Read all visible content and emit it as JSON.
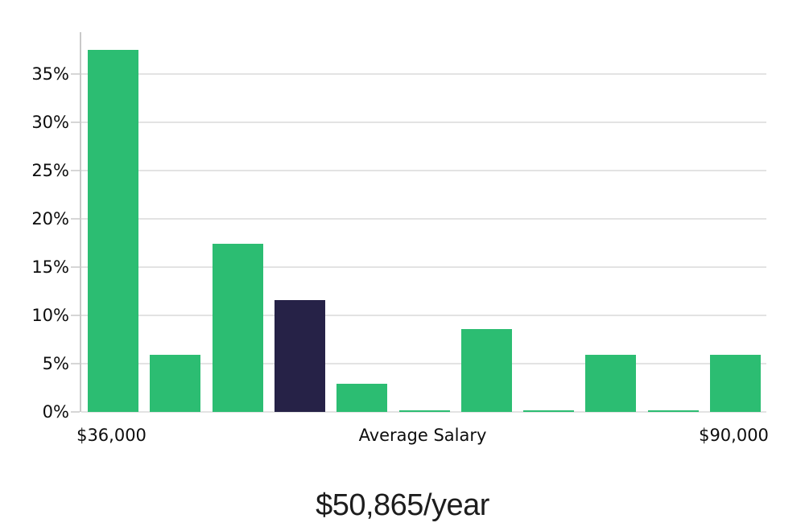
{
  "chart_data": {
    "type": "bar",
    "title": "",
    "caption": "$50,865/year",
    "values": [
      37.5,
      5.9,
      17.4,
      11.6,
      2.9,
      0.15,
      8.6,
      0.15,
      5.9,
      0.15,
      5.9
    ],
    "highlight_index": 3,
    "bar_color": "#2cbd72",
    "highlight_color": "#262247",
    "y_ticks": [
      0,
      5,
      10,
      15,
      20,
      25,
      30,
      35
    ],
    "y_tick_labels": [
      "0%",
      "5%",
      "10%",
      "15%",
      "20%",
      "25%",
      "30%",
      "35%"
    ],
    "ylim": [
      0,
      39.3
    ],
    "ylabel": "",
    "xlabel": "",
    "x_axis_annotations": [
      {
        "label": "$36,000",
        "bar_index": 0
      },
      {
        "label": "Average Salary",
        "bar_index": 5
      },
      {
        "label": "$90,000",
        "bar_index": 10
      }
    ],
    "grid": "horizontal",
    "legend": "none",
    "colors": {
      "grid": "#e3e3e3",
      "axis": "#c9c9c9",
      "tick": "#d6d6d6",
      "label_text": "#0d0d0d",
      "caption_text": "#1d1d1d",
      "background": "#ffffff"
    }
  }
}
